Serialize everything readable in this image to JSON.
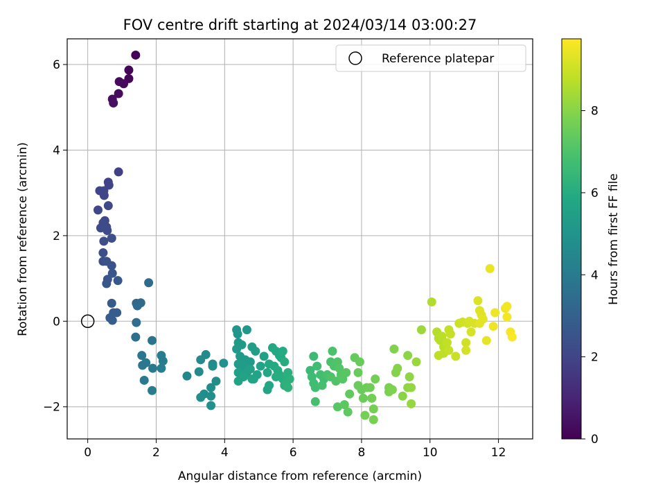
{
  "chart_data": {
    "type": "scatter",
    "title": "FOV centre drift starting at 2024/03/14 03:00:27",
    "xlabel": "Angular distance from reference (arcmin)",
    "ylabel": "Rotation from reference (arcmin)",
    "xlim": [
      -0.6,
      13.0
    ],
    "ylim": [
      -2.75,
      6.6
    ],
    "xticks": [
      0,
      2,
      4,
      6,
      8,
      10,
      12
    ],
    "yticks": [
      -2,
      0,
      2,
      4,
      6
    ],
    "grid": true,
    "legend": {
      "location": "top-right",
      "entries": [
        "Reference platepar"
      ]
    },
    "reference_point": {
      "x": 0,
      "y": 0,
      "label": "Reference platepar"
    },
    "colorbar": {
      "label": "Hours from first FF file",
      "range": [
        0,
        9.75
      ],
      "ticks": [
        0,
        2,
        4,
        6,
        8
      ],
      "colormap": "viridis"
    },
    "series": [
      {
        "name": "FOV centre drift",
        "points": [
          [
            1.4,
            6.22,
            0.05
          ],
          [
            1.2,
            5.87,
            0.1
          ],
          [
            1.2,
            5.67,
            0.15
          ],
          [
            1.05,
            5.55,
            0.2
          ],
          [
            0.92,
            5.6,
            0.25
          ],
          [
            0.9,
            5.32,
            0.3
          ],
          [
            0.72,
            5.19,
            0.35
          ],
          [
            0.75,
            5.1,
            0.4
          ],
          [
            0.9,
            3.49,
            1.85
          ],
          [
            0.6,
            3.25,
            1.9
          ],
          [
            0.62,
            3.18,
            1.95
          ],
          [
            0.35,
            3.05,
            2.0
          ],
          [
            0.47,
            3.05,
            2.05
          ],
          [
            0.48,
            2.94,
            2.05
          ],
          [
            0.6,
            2.7,
            2.1
          ],
          [
            0.3,
            2.6,
            2.1
          ],
          [
            0.5,
            2.35,
            2.15
          ],
          [
            0.45,
            2.3,
            2.15
          ],
          [
            0.38,
            2.18,
            2.2
          ],
          [
            0.55,
            2.2,
            2.2
          ],
          [
            0.57,
            2.12,
            2.25
          ],
          [
            0.7,
            1.94,
            2.3
          ],
          [
            0.47,
            1.87,
            2.3
          ],
          [
            0.45,
            1.6,
            2.35
          ],
          [
            0.45,
            1.4,
            2.4
          ],
          [
            0.55,
            1.4,
            2.45
          ],
          [
            0.7,
            1.3,
            2.5
          ],
          [
            0.72,
            1.12,
            2.55
          ],
          [
            0.58,
            0.98,
            2.6
          ],
          [
            0.55,
            0.88,
            2.6
          ],
          [
            0.88,
            0.95,
            2.65
          ],
          [
            0.7,
            0.42,
            2.8
          ],
          [
            0.75,
            0.2,
            2.85
          ],
          [
            0.85,
            0.2,
            2.85
          ],
          [
            0.65,
            0.08,
            2.9
          ],
          [
            0.72,
            0.02,
            2.9
          ],
          [
            1.42,
            0.42,
            3.3
          ],
          [
            1.55,
            0.43,
            3.3
          ],
          [
            1.45,
            0.36,
            3.35
          ],
          [
            1.78,
            0.9,
            3.4
          ],
          [
            1.42,
            -0.03,
            3.5
          ],
          [
            1.4,
            -0.37,
            3.6
          ],
          [
            1.88,
            -0.45,
            3.7
          ],
          [
            1.58,
            -0.8,
            3.8
          ],
          [
            1.7,
            -0.97,
            3.85
          ],
          [
            1.6,
            -1.03,
            3.85
          ],
          [
            1.9,
            -1.1,
            3.9
          ],
          [
            1.65,
            -1.38,
            3.95
          ],
          [
            1.88,
            -1.62,
            4.0
          ],
          [
            2.15,
            -0.8,
            4.05
          ],
          [
            2.2,
            -0.93,
            4.05
          ],
          [
            2.15,
            -1.1,
            4.1
          ],
          [
            2.9,
            -1.28,
            4.5
          ],
          [
            3.25,
            -1.18,
            4.6
          ],
          [
            3.3,
            -0.9,
            4.6
          ],
          [
            3.45,
            -0.78,
            4.65
          ],
          [
            3.65,
            -1.0,
            4.65
          ],
          [
            3.65,
            -1.05,
            4.7
          ],
          [
            3.75,
            -1.4,
            4.7
          ],
          [
            3.6,
            -1.55,
            4.75
          ],
          [
            3.4,
            -1.7,
            4.75
          ],
          [
            3.3,
            -1.78,
            4.8
          ],
          [
            3.6,
            -1.75,
            4.8
          ],
          [
            3.6,
            -1.97,
            4.85
          ],
          [
            3.97,
            -0.98,
            4.9
          ],
          [
            4.35,
            -0.2,
            5.1
          ],
          [
            4.38,
            -0.3,
            5.1
          ],
          [
            4.65,
            -0.2,
            5.15
          ],
          [
            4.4,
            -0.5,
            5.2
          ],
          [
            4.5,
            -0.55,
            5.2
          ],
          [
            4.35,
            -0.65,
            5.25
          ],
          [
            4.45,
            -0.82,
            5.25
          ],
          [
            4.6,
            -0.9,
            5.3
          ],
          [
            4.75,
            -0.95,
            5.3
          ],
          [
            4.4,
            -1.0,
            5.35
          ],
          [
            4.55,
            -1.05,
            5.35
          ],
          [
            4.8,
            -0.6,
            5.4
          ],
          [
            4.9,
            -0.7,
            5.4
          ],
          [
            5.15,
            -0.82,
            5.45
          ],
          [
            4.4,
            -1.2,
            5.45
          ],
          [
            4.5,
            -1.25,
            5.5
          ],
          [
            4.65,
            -1.2,
            5.5
          ],
          [
            4.75,
            -1.12,
            5.55
          ],
          [
            4.85,
            -1.35,
            5.55
          ],
          [
            4.95,
            -1.25,
            5.6
          ],
          [
            5.05,
            -1.05,
            5.6
          ],
          [
            4.4,
            -1.4,
            5.65
          ],
          [
            4.55,
            -1.3,
            5.65
          ],
          [
            4.8,
            -1.35,
            5.7
          ],
          [
            5.25,
            -1.6,
            5.7
          ],
          [
            5.3,
            -1.5,
            5.75
          ],
          [
            5.25,
            -1.2,
            5.75
          ],
          [
            5.3,
            -1.0,
            5.8
          ],
          [
            5.4,
            -0.62,
            5.8
          ],
          [
            5.5,
            -0.7,
            5.85
          ],
          [
            5.6,
            -0.8,
            5.85
          ],
          [
            5.65,
            -0.85,
            5.9
          ],
          [
            5.45,
            -1.05,
            5.9
          ],
          [
            5.55,
            -1.15,
            5.95
          ],
          [
            5.7,
            -0.7,
            5.95
          ],
          [
            5.75,
            -0.95,
            6.0
          ],
          [
            5.6,
            -1.25,
            6.0
          ],
          [
            5.5,
            -1.3,
            6.05
          ],
          [
            5.7,
            -1.35,
            6.05
          ],
          [
            5.8,
            -1.4,
            6.1
          ],
          [
            5.75,
            -1.5,
            6.1
          ],
          [
            5.85,
            -1.2,
            6.15
          ],
          [
            5.9,
            -1.35,
            6.2
          ],
          [
            5.8,
            -1.45,
            6.2
          ],
          [
            5.85,
            -1.55,
            6.25
          ],
          [
            6.5,
            -1.15,
            6.6
          ],
          [
            6.6,
            -0.82,
            6.6
          ],
          [
            6.55,
            -1.3,
            6.65
          ],
          [
            6.7,
            -1.05,
            6.7
          ],
          [
            6.6,
            -1.45,
            6.7
          ],
          [
            6.65,
            -1.55,
            6.75
          ],
          [
            6.8,
            -1.25,
            6.8
          ],
          [
            6.9,
            -1.35,
            6.8
          ],
          [
            6.85,
            -1.5,
            6.85
          ],
          [
            6.65,
            -1.88,
            6.85
          ],
          [
            7.0,
            -1.25,
            6.9
          ],
          [
            7.1,
            -0.95,
            6.95
          ],
          [
            7.15,
            -0.7,
            6.95
          ],
          [
            7.2,
            -1.05,
            7.0
          ],
          [
            7.1,
            -1.3,
            7.0
          ],
          [
            7.25,
            -1.4,
            7.05
          ],
          [
            7.3,
            -0.95,
            7.05
          ],
          [
            7.35,
            -1.1,
            7.1
          ],
          [
            7.4,
            -1.25,
            7.15
          ],
          [
            7.45,
            -1.35,
            7.15
          ],
          [
            7.55,
            -1.2,
            7.2
          ],
          [
            7.3,
            -2.0,
            7.2
          ],
          [
            7.5,
            -1.95,
            7.25
          ],
          [
            7.6,
            -2.12,
            7.3
          ],
          [
            7.65,
            -1.7,
            7.35
          ],
          [
            7.8,
            -0.85,
            7.4
          ],
          [
            7.95,
            -0.95,
            7.45
          ],
          [
            7.9,
            -1.2,
            7.45
          ],
          [
            7.9,
            -1.5,
            7.5
          ],
          [
            8.0,
            -1.6,
            7.5
          ],
          [
            8.05,
            -1.8,
            7.55
          ],
          [
            8.15,
            -1.55,
            7.55
          ],
          [
            8.25,
            -1.55,
            7.6
          ],
          [
            8.3,
            -1.8,
            7.65
          ],
          [
            8.4,
            -1.35,
            7.65
          ],
          [
            8.35,
            -2.05,
            7.7
          ],
          [
            8.1,
            -2.2,
            7.7
          ],
          [
            8.35,
            -2.3,
            7.75
          ],
          [
            8.8,
            -1.65,
            7.8
          ],
          [
            8.8,
            -1.55,
            7.8
          ],
          [
            8.9,
            -1.6,
            7.85
          ],
          [
            8.95,
            -0.65,
            7.9
          ],
          [
            9.0,
            -1.2,
            7.95
          ],
          [
            9.05,
            -1.1,
            7.95
          ],
          [
            9.2,
            -1.75,
            8.0
          ],
          [
            9.35,
            -0.8,
            8.05
          ],
          [
            9.4,
            -1.3,
            8.1
          ],
          [
            9.35,
            -1.55,
            8.1
          ],
          [
            9.45,
            -1.55,
            8.15
          ],
          [
            9.45,
            -1.93,
            8.2
          ],
          [
            9.6,
            -0.95,
            8.25
          ],
          [
            9.75,
            -0.2,
            8.3
          ],
          [
            10.05,
            0.45,
            8.6
          ],
          [
            10.2,
            -0.25,
            8.65
          ],
          [
            10.25,
            -0.4,
            8.7
          ],
          [
            10.3,
            -0.45,
            8.7
          ],
          [
            10.35,
            -0.35,
            8.75
          ],
          [
            10.4,
            -0.6,
            8.75
          ],
          [
            10.25,
            -0.8,
            8.8
          ],
          [
            10.4,
            -0.75,
            8.8
          ],
          [
            10.5,
            -0.5,
            8.85
          ],
          [
            10.55,
            -0.2,
            8.85
          ],
          [
            10.6,
            -0.3,
            8.9
          ],
          [
            10.55,
            -0.68,
            8.9
          ],
          [
            10.75,
            -0.82,
            8.95
          ],
          [
            10.85,
            -0.05,
            9.0
          ],
          [
            10.95,
            -0.02,
            9.05
          ],
          [
            11.05,
            -0.5,
            9.05
          ],
          [
            11.1,
            -0.05,
            9.1
          ],
          [
            11.05,
            -0.68,
            9.1
          ],
          [
            11.15,
            0.0,
            9.15
          ],
          [
            11.2,
            -0.25,
            9.15
          ],
          [
            11.3,
            -0.05,
            9.2
          ],
          [
            11.4,
            0.48,
            9.25
          ],
          [
            11.45,
            0.25,
            9.3
          ],
          [
            11.5,
            0.15,
            9.3
          ],
          [
            11.55,
            0.05,
            9.35
          ],
          [
            11.45,
            -0.05,
            9.35
          ],
          [
            11.65,
            -0.45,
            9.4
          ],
          [
            11.75,
            1.23,
            9.45
          ],
          [
            11.85,
            -0.12,
            9.5
          ],
          [
            11.9,
            0.2,
            9.5
          ],
          [
            12.2,
            0.3,
            9.55
          ],
          [
            12.25,
            0.35,
            9.6
          ],
          [
            12.25,
            0.1,
            9.6
          ],
          [
            12.35,
            -0.25,
            9.65
          ],
          [
            12.4,
            -0.37,
            9.7
          ]
        ]
      }
    ]
  }
}
